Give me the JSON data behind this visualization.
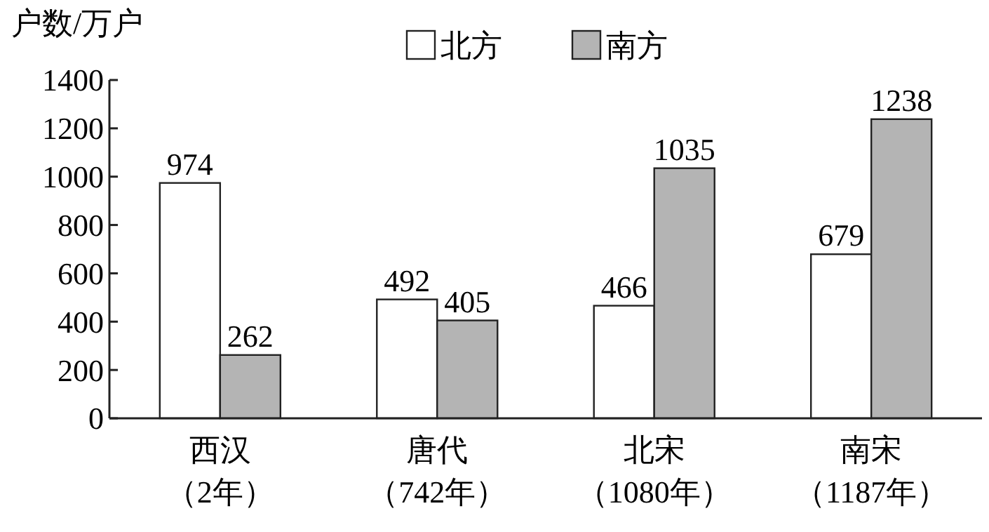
{
  "chart_data": {
    "type": "bar",
    "ylabel": "户数/万户",
    "categories": [
      "西汉（2年）",
      "唐代（742年）",
      "北宋（1080年）",
      "南宋（1187年）"
    ],
    "series": [
      {
        "name": "北方",
        "color": "#ffffff",
        "values": [
          974,
          492,
          466,
          679
        ]
      },
      {
        "name": "南方",
        "color": "#b4b4b4",
        "values": [
          262,
          405,
          1035,
          1238
        ]
      }
    ],
    "ylim": [
      0,
      1400
    ],
    "yticks": [
      0,
      200,
      400,
      600,
      800,
      1000,
      1200,
      1400
    ],
    "data_labels": true,
    "legend": "top",
    "grid": false
  }
}
